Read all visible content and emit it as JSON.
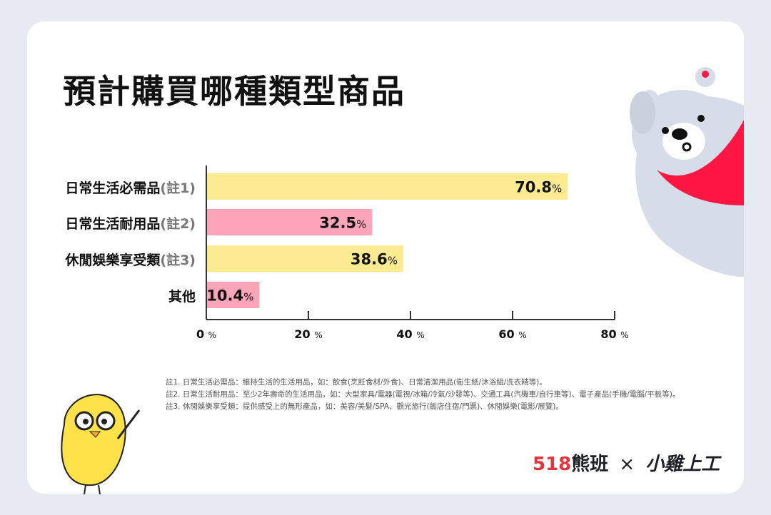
{
  "title": "預計購買哪種類型商品",
  "colors": {
    "yellow": "#fdeb91",
    "pink": "#fca5b8",
    "accent_red": "#ff1744",
    "background": "#e7eaf0"
  },
  "chart_data": {
    "type": "bar",
    "orientation": "horizontal",
    "categories": [
      "日常生活必需品",
      "日常生活耐用品",
      "休閒娛樂享受類",
      "其他"
    ],
    "category_notes": [
      "(註1)",
      "(註2)",
      "(註3)",
      ""
    ],
    "values": [
      70.8,
      32.5,
      38.6,
      10.4
    ],
    "data_labels": [
      "70.8",
      "32.5",
      "38.6",
      "10.4"
    ],
    "unit": "%",
    "bar_colors": [
      "#fdeb91",
      "#fca5b8",
      "#fdeb91",
      "#fca5b8"
    ],
    "xlim": [
      0,
      80
    ],
    "xticks": [
      0,
      20,
      40,
      60,
      80
    ],
    "xtick_labels": [
      "0",
      "20",
      "40",
      "60",
      "80"
    ],
    "grid": false
  },
  "footnotes": [
    "註1. 日常生活必需品：維持生活的生活用品，如：飲食(烹飪食材/外食)、日常清潔用品(衛生紙/沐浴組/洗衣精等)。",
    "註2. 日常生活耐用品：至少2年壽命的生活用品，如：大型家具/電器(電視/冰箱/冷氣/沙發等)、交通工具(汽機車/自行車等)、電子產品(手機/電腦/平板等)。",
    "註3. 休閒娛樂享受類：提供感受上的無形產品，如：美容/美髮/SPA、觀光旅行(飯店住宿/門票)、休閒娛樂(電影/展覽)。"
  ],
  "logo": {
    "brand1_num": "518",
    "brand1_name": "熊班",
    "times": "×",
    "brand2": "小雞上工"
  }
}
